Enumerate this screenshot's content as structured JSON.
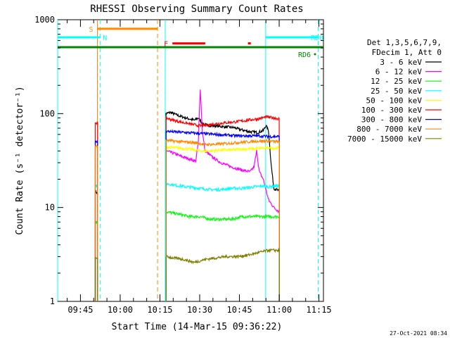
{
  "chart_data": {
    "type": "line",
    "title": "RHESSI Observing Summary Count Rates",
    "xlabel": "Start Time (14-Mar-15 09:36:22)",
    "ylabel": "Count Rate (s⁻¹ detector⁻¹)",
    "y_scale": "log",
    "ylim": [
      1,
      1000
    ],
    "y_ticks": [
      "1",
      "10",
      "100",
      "1000"
    ],
    "xlim_minutes": [
      576.4,
      676.7
    ],
    "x_ticks": [
      {
        "label": "09:45",
        "minutes": 585
      },
      {
        "label": "10:00",
        "minutes": 600
      },
      {
        "label": "10:15",
        "minutes": 615
      },
      {
        "label": "10:30",
        "minutes": 630
      },
      {
        "label": "10:45",
        "minutes": 645
      },
      {
        "label": "11:00",
        "minutes": 660
      },
      {
        "label": "11:15",
        "minutes": 675
      }
    ],
    "legend": {
      "placement": "right",
      "header": [
        "Det 1,3,5,6,7,9,",
        "FDecim 1, Att 0"
      ]
    },
    "series": [
      {
        "name": "3 - 6 keV",
        "color": "#000000",
        "segments": [
          {
            "x": [
              590.6,
              591.5
            ],
            "y": [
              15,
              14
            ]
          },
          {
            "x": [
              617.3,
              619,
              622,
              626,
              628,
              629.5,
              631,
              633,
              636,
              640,
              643,
              645,
              646,
              647,
              649,
              652,
              654,
              655,
              656,
              657,
              658,
              660
            ],
            "y": [
              100,
              103,
              95,
              88,
              85,
              90,
              78,
              75,
              74,
              72,
              71,
              68,
              67,
              66,
              64,
              63,
              66,
              75,
              65,
              28,
              16,
              15
            ]
          }
        ]
      },
      {
        "name": "6 - 12 keV",
        "color": "#ff00ff",
        "segments": [
          {
            "x": [
              590.6,
              591.5
            ],
            "y": [
              7,
              7
            ]
          },
          {
            "x": [
              617.3,
              620,
              623,
              626,
              628.5,
              629.5,
              630.2,
              631,
              632,
              635,
              638,
              642,
              646,
              649,
              650.5,
              651.5,
              652.5,
              654,
              656,
              658,
              660
            ],
            "y": [
              40,
              38,
              35,
              33,
              31,
              50,
              185,
              65,
              40,
              34,
              30,
              27,
              25,
              24,
              27,
              40,
              24,
              20,
              12,
              10,
              9
            ]
          }
        ]
      },
      {
        "name": "12 - 25 keV",
        "color": "#00ff00",
        "segments": [
          {
            "x": [
              590.6,
              591.5
            ],
            "y": [
              7,
              7
            ]
          },
          {
            "x": [
              617.3,
              622,
              626,
              630,
              634,
              638,
              642,
              646,
              650,
              654,
              658,
              660
            ],
            "y": [
              9,
              8.5,
              8,
              8,
              7.5,
              7.5,
              7.5,
              8,
              8,
              8,
              8,
              8
            ]
          }
        ]
      },
      {
        "name": "25 - 50 keV",
        "color": "#00ffff",
        "segments": [
          {
            "x": [
              590.6,
              591.5
            ],
            "y": [
              17,
              17
            ]
          },
          {
            "x": [
              617.3,
              622,
              626,
              630,
              634,
              638,
              642,
              646,
              650,
              654,
              656,
              658,
              660
            ],
            "y": [
              18,
              17,
              16.5,
              16,
              15.5,
              15.5,
              16,
              16,
              16.5,
              17,
              16.5,
              17,
              17
            ]
          }
        ]
      },
      {
        "name": "50 - 100 keV",
        "color": "#ffff00",
        "segments": [
          {
            "x": [
              590.6,
              591.5
            ],
            "y": [
              43,
              43
            ]
          },
          {
            "x": [
              617.3,
              622,
              626,
              630,
              634,
              638,
              642,
              646,
              650,
              654,
              658,
              660
            ],
            "y": [
              44,
              43,
              42,
              40,
              40,
              41,
              41,
              42,
              42,
              43,
              43,
              43
            ]
          }
        ]
      },
      {
        "name": "100 - 300 keV",
        "color": "#ff0000",
        "segments": [
          {
            "x": [
              590.6,
              591.5
            ],
            "y": [
              80,
              80
            ]
          },
          {
            "x": [
              617.3,
              620,
              624,
              628,
              630,
              632,
              636,
              640,
              644,
              648,
              652,
              655,
              658,
              660
            ],
            "y": [
              90,
              85,
              80,
              76,
              74,
              75,
              78,
              80,
              82,
              85,
              88,
              92,
              90,
              88
            ]
          }
        ]
      },
      {
        "name": "300 - 800 keV",
        "color": "#0000ff",
        "segments": [
          {
            "x": [
              590.6,
              591.5
            ],
            "y": [
              50,
              50
            ]
          },
          {
            "x": [
              617.3,
              620,
              624,
              628,
              632,
              636,
              640,
              644,
              648,
              652,
              656,
              660
            ],
            "y": [
              65,
              64,
              63,
              62,
              61,
              60,
              59,
              58,
              58,
              58,
              57,
              57
            ]
          }
        ]
      },
      {
        "name": "800 - 7000 keV",
        "color": "#ff8800",
        "segments": [
          {
            "x": [
              590.6,
              591.5
            ],
            "y": [
              45,
              45
            ]
          },
          {
            "x": [
              617.3,
              620,
              624,
              628,
              632,
              636,
              640,
              644,
              648,
              652,
              656,
              660
            ],
            "y": [
              52,
              51,
              50,
              49,
              47,
              47,
              48,
              49,
              50,
              51,
              51,
              50
            ]
          }
        ]
      },
      {
        "name": "7000 - 15000 keV",
        "color": "#808000",
        "segments": [
          {
            "x": [
              590.6,
              591.5
            ],
            "y": [
              2.9,
              2.9
            ]
          },
          {
            "x": [
              617.3,
              620,
              624,
              628,
              632,
              636,
              640,
              644,
              648,
              652,
              656,
              660
            ],
            "y": [
              3,
              2.9,
              2.8,
              2.6,
              2.8,
              2.9,
              3,
              3,
              3.1,
              3.3,
              3.5,
              3.5
            ]
          }
        ]
      }
    ],
    "annotations": [
      {
        "id": "S",
        "label": "S",
        "color": "#ff8800",
        "bar_start_minutes": 591.4,
        "bar_end_minutes": 614.1,
        "level": 800
      },
      {
        "id": "N",
        "label": "N",
        "color": "#00ffff",
        "bar_start_minutes": 576.4,
        "bar_end_minutes": 592.4,
        "level": 650
      },
      {
        "id": "F",
        "label": "F",
        "color": "#ff0000",
        "segments": [
          [
            619.7,
            632.1
          ],
          [
            648.2,
            649.3
          ]
        ],
        "level": 560
      },
      {
        "id": "RD0",
        "label": "RD0",
        "color": "#00ffff",
        "bar_start_minutes": 654.9,
        "bar_end_minutes": 674.7,
        "level": 650
      },
      {
        "id": "RD6",
        "label": "RD6",
        "color": "#008800",
        "level": 510
      }
    ],
    "vertical_markers": [
      {
        "minutes": 576.4,
        "color": "#00ffff",
        "style": "solid"
      },
      {
        "minutes": 591.4,
        "color": "#ff8800",
        "style": "solid"
      },
      {
        "minutes": 592.4,
        "color": "#00ffff",
        "style": "dashed"
      },
      {
        "minutes": 614.1,
        "color": "#ff8800",
        "style": "dashed"
      },
      {
        "minutes": 617.0,
        "color": "#00ffff",
        "style": "solid"
      },
      {
        "minutes": 654.9,
        "color": "#00ffff",
        "style": "solid"
      },
      {
        "minutes": 674.7,
        "color": "#00ffff",
        "style": "dashed"
      }
    ],
    "saa_level": 510,
    "timestamp": "27-Oct-2021 08:34"
  }
}
